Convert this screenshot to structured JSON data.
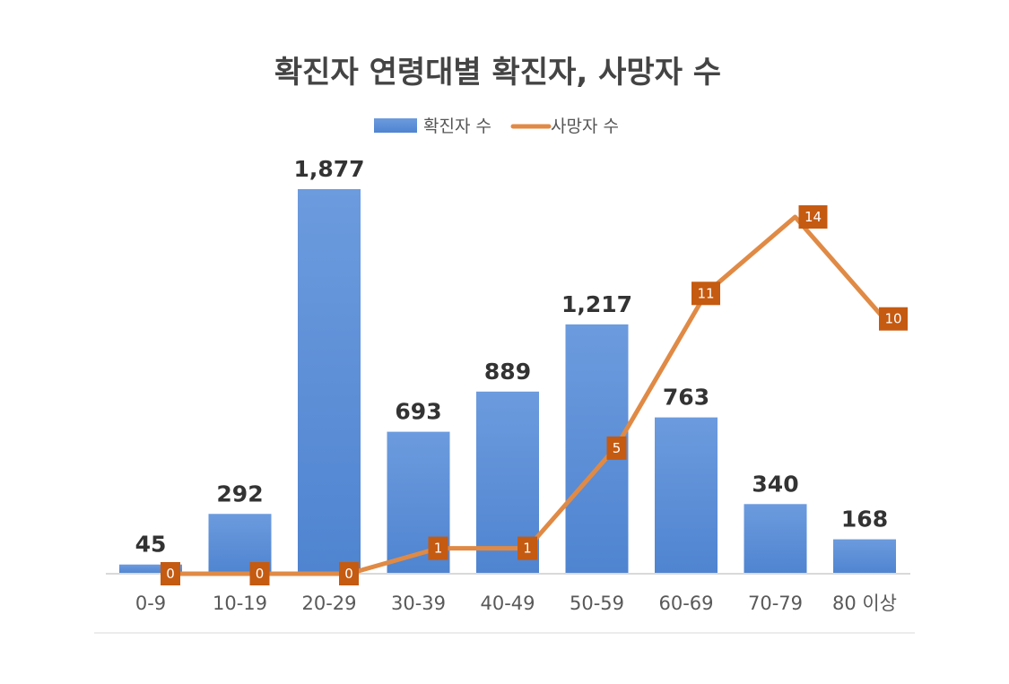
{
  "chart_data": {
    "type": "bar",
    "title": "확진자 연령대별 확진자, 사망자 수",
    "categories": [
      "0-9",
      "10-19",
      "20-29",
      "30-39",
      "40-49",
      "50-59",
      "60-69",
      "70-79",
      "80 이상"
    ],
    "series": [
      {
        "name": "확진자 수",
        "type": "bar",
        "color": "#5b8fd6",
        "values": [
          45,
          292,
          1877,
          693,
          889,
          1217,
          763,
          340,
          168
        ],
        "labels": [
          "45",
          "292",
          "1,877",
          "693",
          "889",
          "1,217",
          "763",
          "340",
          "168"
        ]
      },
      {
        "name": "사망자 수",
        "type": "line",
        "color": "#e08a45",
        "label_color": "#c55a11",
        "values": [
          0,
          0,
          0,
          1,
          1,
          5,
          11,
          14,
          10
        ],
        "labels": [
          "0",
          "0",
          "0",
          "1",
          "1",
          "5",
          "11",
          "14",
          "10"
        ]
      }
    ],
    "ylim_bar": [
      0,
      1877
    ],
    "ylim_line": [
      0,
      14
    ],
    "legend": "top",
    "grid": false
  }
}
